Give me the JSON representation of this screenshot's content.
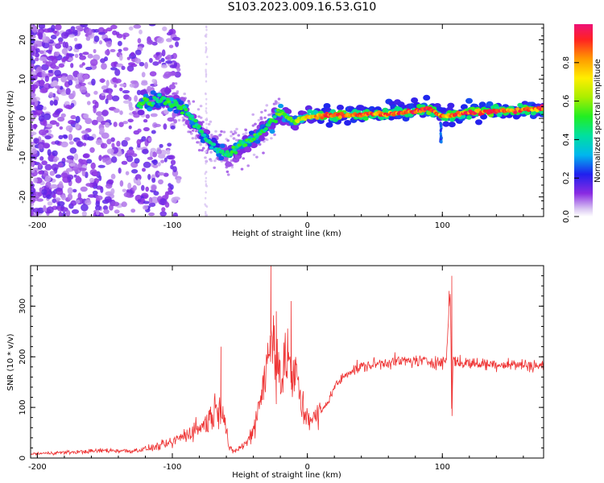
{
  "figure_title": "S103.2023.009.16.53.G10",
  "chart_data": [
    {
      "type": "heatmap",
      "xlabel": "Height of straight line (km)",
      "ylabel": "Frequency (Hz)",
      "xlim": [
        -205,
        175
      ],
      "ylim": [
        -25,
        24
      ],
      "xticks": [
        "-200",
        "-100",
        "0",
        "100"
      ],
      "yticks": [
        "-20",
        "-10",
        "0",
        "10",
        "20"
      ],
      "colorbar": {
        "label": "Normalized spectral amplitude",
        "range": [
          0.0,
          1.0
        ],
        "ticks": [
          "0.0",
          "0.2",
          "0.4",
          "0.6",
          "0.8"
        ]
      },
      "ridge": {
        "x": [
          -120,
          -110,
          -100,
          -90,
          -80,
          -70,
          -60,
          -50,
          -40,
          -30,
          -20,
          -10,
          0,
          20,
          40,
          60,
          80,
          90,
          100,
          120,
          140,
          160,
          175
        ],
        "y": [
          4,
          5,
          4,
          2,
          -3,
          -7,
          -9,
          -7,
          -5,
          -2,
          2,
          -1,
          0.5,
          0.8,
          1,
          1.2,
          1.8,
          2.5,
          0.5,
          1.5,
          1.8,
          2.2,
          2.5
        ],
        "amplitude": [
          0.5,
          0.45,
          0.5,
          0.45,
          0.45,
          0.4,
          0.45,
          0.5,
          0.5,
          0.45,
          0.55,
          0.55,
          0.7,
          0.9,
          0.85,
          0.85,
          0.9,
          0.95,
          0.8,
          0.9,
          0.9,
          0.88,
          0.85
        ]
      },
      "grid": false
    },
    {
      "type": "line",
      "xlabel": "Height of straight line (km)",
      "ylabel": "SNR (10 * v/v)",
      "xlim": [
        -205,
        175
      ],
      "ylim": [
        0,
        380
      ],
      "xticks": [
        "-200",
        "-100",
        "0",
        "100"
      ],
      "yticks": [
        "0",
        "100",
        "200",
        "300"
      ],
      "series": [
        {
          "color": "#ee3333",
          "x": [
            -205,
            -190,
            -170,
            -150,
            -130,
            -115,
            -100,
            -95,
            -90,
            -85,
            -80,
            -75,
            -72,
            -68,
            -65,
            -62,
            -58,
            -55,
            -50,
            -45,
            -40,
            -35,
            -30,
            -27,
            -25,
            -23,
            -20,
            -18,
            -15,
            -12,
            -10,
            -8,
            -5,
            -2,
            0,
            5,
            10,
            15,
            20,
            30,
            40,
            50,
            60,
            80,
            95,
            100,
            103,
            105,
            106,
            107,
            108,
            110,
            115,
            130,
            150,
            175
          ],
          "y": [
            8,
            10,
            12,
            15,
            14,
            20,
            30,
            40,
            45,
            55,
            60,
            70,
            80,
            95,
            110,
            90,
            20,
            12,
            20,
            30,
            55,
            120,
            180,
            220,
            250,
            200,
            170,
            150,
            220,
            160,
            140,
            170,
            110,
            90,
            85,
            75,
            90,
            110,
            140,
            170,
            180,
            185,
            190,
            192,
            190,
            188,
            195,
            300,
            330,
            60,
            200,
            190,
            188,
            186,
            185,
            182
          ]
        }
      ],
      "peaks": {
        "x": [
          -64,
          -27,
          -23,
          -12,
          105,
          107
        ],
        "y": [
          220,
          380,
          290,
          310,
          330,
          360
        ]
      },
      "grid": false
    }
  ]
}
